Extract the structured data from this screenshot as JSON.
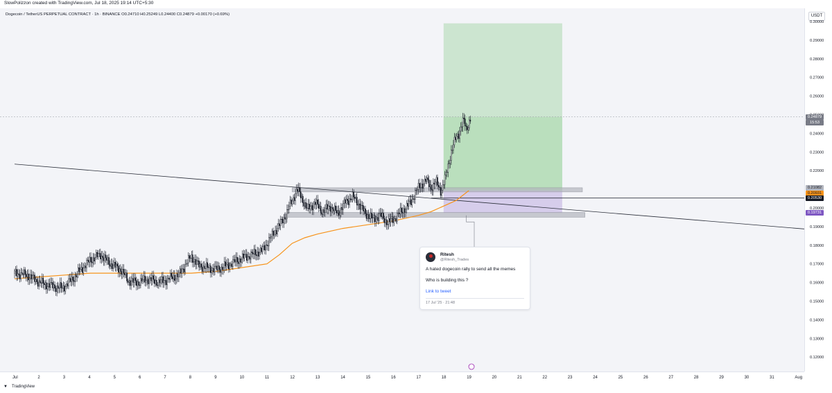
{
  "header": {
    "attribution": "SlowPolizzon created with TradingView.com, Jul 18, 2025 19:14 UTC+5:30",
    "symbol_info": "Dogecoin / TetherUS PERPETUAL CONTRACT · 1h · BINANCE  O0.24710  H0.25249  L0.24400  C0.24879  +0.00170 (+0.69%)"
  },
  "price_axis": {
    "currency": "USDT",
    "ticks": [
      "0.30000",
      "0.29000",
      "0.28000",
      "0.27000",
      "0.26000",
      "0.25000",
      "0.24000",
      "0.23000",
      "0.22000",
      "0.21000",
      "0.20000",
      "0.19000",
      "0.18000",
      "0.17000",
      "0.16000",
      "0.15000",
      "0.14000",
      "0.13000",
      "0.12000"
    ],
    "labels": {
      "last_price": "0.24879",
      "countdown": "15:53",
      "level_a": "0.21082",
      "level_b": "0.20931",
      "level_c": "0.20530",
      "level_d": "0.19731"
    }
  },
  "time_axis": {
    "ticks": [
      "Jul",
      "2",
      "3",
      "4",
      "5",
      "6",
      "7",
      "8",
      "9",
      "10",
      "11",
      "12",
      "13",
      "14",
      "15",
      "16",
      "17",
      "18",
      "19",
      "20",
      "21",
      "22",
      "23",
      "24",
      "25",
      "26",
      "27",
      "28",
      "29",
      "30",
      "31",
      "Aug"
    ]
  },
  "tweet": {
    "name": "Ritesh",
    "handle": "@Ritesh_Trades",
    "line1": "A hated dogecoin rally to send all the memes",
    "line2": "Who is building this ?",
    "link": "Link to tweet",
    "date": "17 Jul '25 · 21:48"
  },
  "footer": {
    "brand": "TradingView"
  },
  "colors": {
    "background": "#f3f4f8",
    "candle": "#131722",
    "moving_average": "#f7931a",
    "target_zone": "#a5d6a7",
    "stop_zone": "#b39ddb",
    "support_zone": "#b2b5be",
    "last_price_tag": "#787b86",
    "level_b_tag": "#f7931a",
    "level_c_tag": "#131722",
    "level_d_tag": "#7e57c2"
  },
  "chart_data": {
    "type": "candlestick",
    "timeframe": "1h",
    "x_range": [
      "Jul 1",
      "Aug 1"
    ],
    "ylim": [
      0.115,
      0.3
    ],
    "price_path": [
      [
        0.0,
        0.165
      ],
      [
        0.5,
        0.164
      ],
      [
        1.0,
        0.16
      ],
      [
        1.5,
        0.158
      ],
      [
        1.9,
        0.157
      ],
      [
        2.3,
        0.162
      ],
      [
        2.7,
        0.168
      ],
      [
        3.0,
        0.172
      ],
      [
        3.4,
        0.175
      ],
      [
        3.8,
        0.17
      ],
      [
        4.2,
        0.167
      ],
      [
        4.5,
        0.161
      ],
      [
        4.9,
        0.16
      ],
      [
        5.3,
        0.162
      ],
      [
        5.7,
        0.16
      ],
      [
        6.1,
        0.162
      ],
      [
        6.5,
        0.164
      ],
      [
        6.8,
        0.17
      ],
      [
        7.0,
        0.174
      ],
      [
        7.3,
        0.169
      ],
      [
        7.6,
        0.168
      ],
      [
        8.0,
        0.167
      ],
      [
        8.4,
        0.169
      ],
      [
        8.7,
        0.171
      ],
      [
        9.0,
        0.173
      ],
      [
        9.4,
        0.175
      ],
      [
        9.8,
        0.177
      ],
      [
        10.1,
        0.183
      ],
      [
        10.4,
        0.189
      ],
      [
        10.7,
        0.195
      ],
      [
        11.0,
        0.204
      ],
      [
        11.2,
        0.21
      ],
      [
        11.4,
        0.205
      ],
      [
        11.6,
        0.199
      ],
      [
        11.9,
        0.203
      ],
      [
        12.2,
        0.198
      ],
      [
        12.5,
        0.201
      ],
      [
        12.8,
        0.197
      ],
      [
        13.1,
        0.203
      ],
      [
        13.4,
        0.206
      ],
      [
        13.6,
        0.203
      ],
      [
        13.9,
        0.197
      ],
      [
        14.2,
        0.194
      ],
      [
        14.5,
        0.196
      ],
      [
        14.8,
        0.192
      ],
      [
        15.1,
        0.195
      ],
      [
        15.4,
        0.199
      ],
      [
        15.7,
        0.203
      ],
      [
        15.9,
        0.209
      ],
      [
        16.1,
        0.212
      ],
      [
        16.3,
        0.215
      ],
      [
        16.5,
        0.211
      ],
      [
        16.7,
        0.214
      ],
      [
        16.9,
        0.209
      ],
      [
        17.0,
        0.213
      ],
      [
        17.1,
        0.218
      ],
      [
        17.2,
        0.224
      ],
      [
        17.3,
        0.23
      ],
      [
        17.4,
        0.234
      ],
      [
        17.5,
        0.238
      ],
      [
        17.6,
        0.24
      ],
      [
        17.7,
        0.244
      ],
      [
        17.8,
        0.247
      ],
      [
        17.9,
        0.242
      ],
      [
        18.0,
        0.246
      ],
      [
        18.1,
        0.249
      ]
    ],
    "moving_average_path": [
      [
        0.0,
        0.162
      ],
      [
        1.0,
        0.163
      ],
      [
        2.0,
        0.164
      ],
      [
        3.0,
        0.165
      ],
      [
        4.0,
        0.165
      ],
      [
        5.0,
        0.165
      ],
      [
        6.0,
        0.165
      ],
      [
        7.0,
        0.165
      ],
      [
        8.0,
        0.166
      ],
      [
        9.0,
        0.168
      ],
      [
        10.0,
        0.17
      ],
      [
        10.5,
        0.175
      ],
      [
        11.0,
        0.181
      ],
      [
        11.5,
        0.184
      ],
      [
        12.0,
        0.186
      ],
      [
        13.0,
        0.189
      ],
      [
        14.0,
        0.191
      ],
      [
        15.0,
        0.193
      ],
      [
        16.0,
        0.196
      ],
      [
        16.5,
        0.198
      ],
      [
        17.0,
        0.201
      ],
      [
        17.5,
        0.204
      ],
      [
        18.0,
        0.2093
      ]
    ],
    "ohlc_last": {
      "open": 0.2471,
      "high": 0.25249,
      "low": 0.244,
      "close": 0.24879,
      "change": 0.0017,
      "change_pct": 0.69
    },
    "moving_average_last": 0.20931,
    "trendline": {
      "start": [
        0.0,
        0.2235
      ],
      "end": [
        31.5,
        0.1885
      ]
    },
    "horizontal_line": 0.2053,
    "position": {
      "x_start": 17.0,
      "x_end": 21.7,
      "entry": 0.20931,
      "target": 0.299,
      "stop": 0.19731
    },
    "zones": [
      {
        "name": "resistance",
        "x_start": 11.0,
        "x_end": 22.5,
        "y_low": 0.2095,
        "y_high": 0.21082
      },
      {
        "name": "support",
        "x_start": 10.7,
        "x_end": 22.6,
        "y_low": 0.195,
        "y_high": 0.1976
      }
    ]
  }
}
